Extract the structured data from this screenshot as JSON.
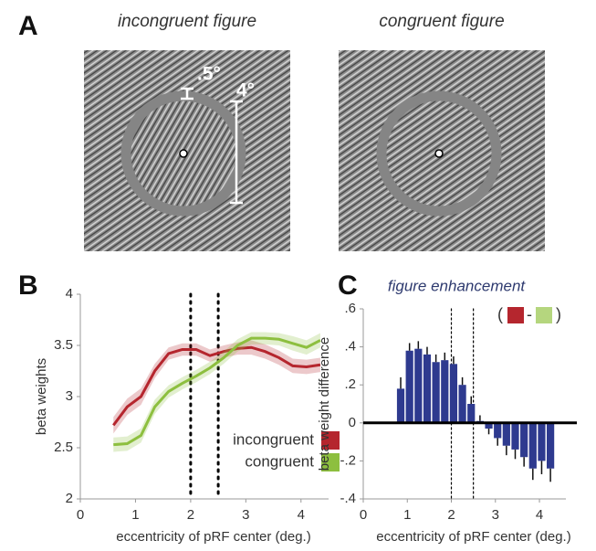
{
  "panel_a": {
    "label": "A",
    "stimuli": [
      {
        "title": "incongruent figure",
        "color": "#b5262e"
      },
      {
        "title": "congruent figure",
        "color": "#8dbf3f"
      }
    ],
    "annotations": [
      ".5°",
      "4°"
    ]
  },
  "chart_data": [
    {
      "type": "line",
      "label": "B",
      "xlabel": "eccentricity of pRF center (deg.)",
      "ylabel": "beta weights",
      "x": [
        0.6,
        0.85,
        1.1,
        1.35,
        1.6,
        1.85,
        2.1,
        2.35,
        2.6,
        2.85,
        3.1,
        3.35,
        3.6,
        3.85,
        4.1,
        4.35
      ],
      "series": [
        {
          "name": "incongruent",
          "color": "#b5262e",
          "values": [
            2.72,
            2.9,
            3.0,
            3.25,
            3.42,
            3.46,
            3.46,
            3.4,
            3.44,
            3.47,
            3.48,
            3.44,
            3.38,
            3.3,
            3.29,
            3.31
          ],
          "error": [
            0.08,
            0.08,
            0.08,
            0.07,
            0.06,
            0.06,
            0.06,
            0.06,
            0.06,
            0.06,
            0.07,
            0.07,
            0.07,
            0.07,
            0.07,
            0.07
          ]
        },
        {
          "name": "congruent",
          "color": "#8dbf3f",
          "values": [
            2.53,
            2.54,
            2.62,
            2.9,
            3.05,
            3.13,
            3.2,
            3.28,
            3.38,
            3.5,
            3.57,
            3.57,
            3.56,
            3.52,
            3.48,
            3.55
          ],
          "error": [
            0.07,
            0.07,
            0.07,
            0.07,
            0.06,
            0.06,
            0.06,
            0.06,
            0.06,
            0.06,
            0.06,
            0.06,
            0.06,
            0.07,
            0.07,
            0.07
          ]
        }
      ],
      "xlim": [
        0,
        4.5
      ],
      "xticks": [
        0,
        1,
        2,
        3,
        4
      ],
      "ylim": [
        2,
        4
      ],
      "yticks": [
        2,
        2.5,
        3,
        3.5,
        4
      ],
      "vlines": [
        2,
        2.5
      ],
      "legend": "lower right"
    },
    {
      "type": "bar",
      "label": "C",
      "title": "figure enhancement",
      "xlabel": "eccentricity of pRF center (deg.)",
      "ylabel": "beta weight difference",
      "x": [
        0.85,
        1.05,
        1.25,
        1.45,
        1.65,
        1.85,
        2.05,
        2.25,
        2.45,
        2.65,
        2.85,
        3.05,
        3.25,
        3.45,
        3.65,
        3.85,
        4.05,
        4.25
      ],
      "values": [
        0.18,
        0.38,
        0.39,
        0.36,
        0.32,
        0.33,
        0.31,
        0.2,
        0.1,
        0.01,
        -0.03,
        -0.08,
        -0.12,
        -0.14,
        -0.18,
        -0.24,
        -0.2,
        -0.24
      ],
      "error": [
        0.06,
        0.04,
        0.04,
        0.04,
        0.04,
        0.04,
        0.04,
        0.04,
        0.04,
        0.03,
        0.03,
        0.04,
        0.05,
        0.05,
        0.05,
        0.06,
        0.07,
        0.07
      ],
      "color": "#2e3a8f",
      "xlim": [
        0,
        4.6
      ],
      "xticks": [
        0,
        1,
        2,
        3,
        4
      ],
      "ylim": [
        -0.4,
        0.6
      ],
      "yticks": [
        {
          "value": -0.4,
          "label": "-.4"
        },
        {
          "value": -0.2,
          "label": "-.2"
        },
        0,
        {
          "value": 0.2,
          "label": ".2"
        },
        {
          "value": 0.4,
          "label": ".4"
        },
        {
          "value": 0.6,
          "label": ".6"
        }
      ],
      "vlines": [
        2,
        2.5
      ],
      "legend": {
        "open": "(",
        "separator": "-",
        "close": ")",
        "colors": [
          "#b5262e",
          "#b5d67e"
        ]
      }
    }
  ]
}
